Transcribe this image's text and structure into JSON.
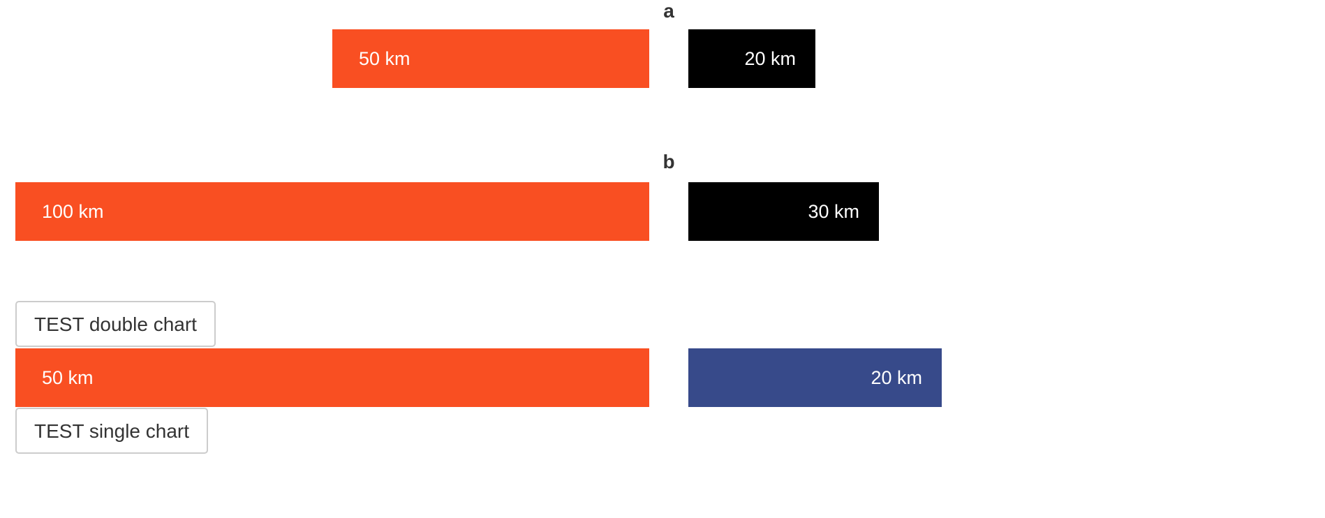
{
  "chart_data": [
    {
      "type": "bar",
      "title": "a",
      "series": [
        {
          "value": 50,
          "label": "50 km",
          "color": "#f94f22",
          "side": "left"
        },
        {
          "value": 20,
          "label": "20 km",
          "color": "#000000",
          "side": "right"
        }
      ]
    },
    {
      "type": "bar",
      "title": "b",
      "series": [
        {
          "value": 100,
          "label": "100 km",
          "color": "#f94f22",
          "side": "left"
        },
        {
          "value": 30,
          "label": "30 km",
          "color": "#000000",
          "side": "right"
        }
      ]
    },
    {
      "type": "bar",
      "title": "",
      "series": [
        {
          "value": 50,
          "label": "50 km",
          "color": "#f94f22",
          "side": "left"
        },
        {
          "value": 20,
          "label": "20 km",
          "color": "#374a8a",
          "side": "right"
        }
      ]
    }
  ],
  "buttons": {
    "double_chart": "TEST double chart",
    "single_chart": "TEST single chart"
  }
}
